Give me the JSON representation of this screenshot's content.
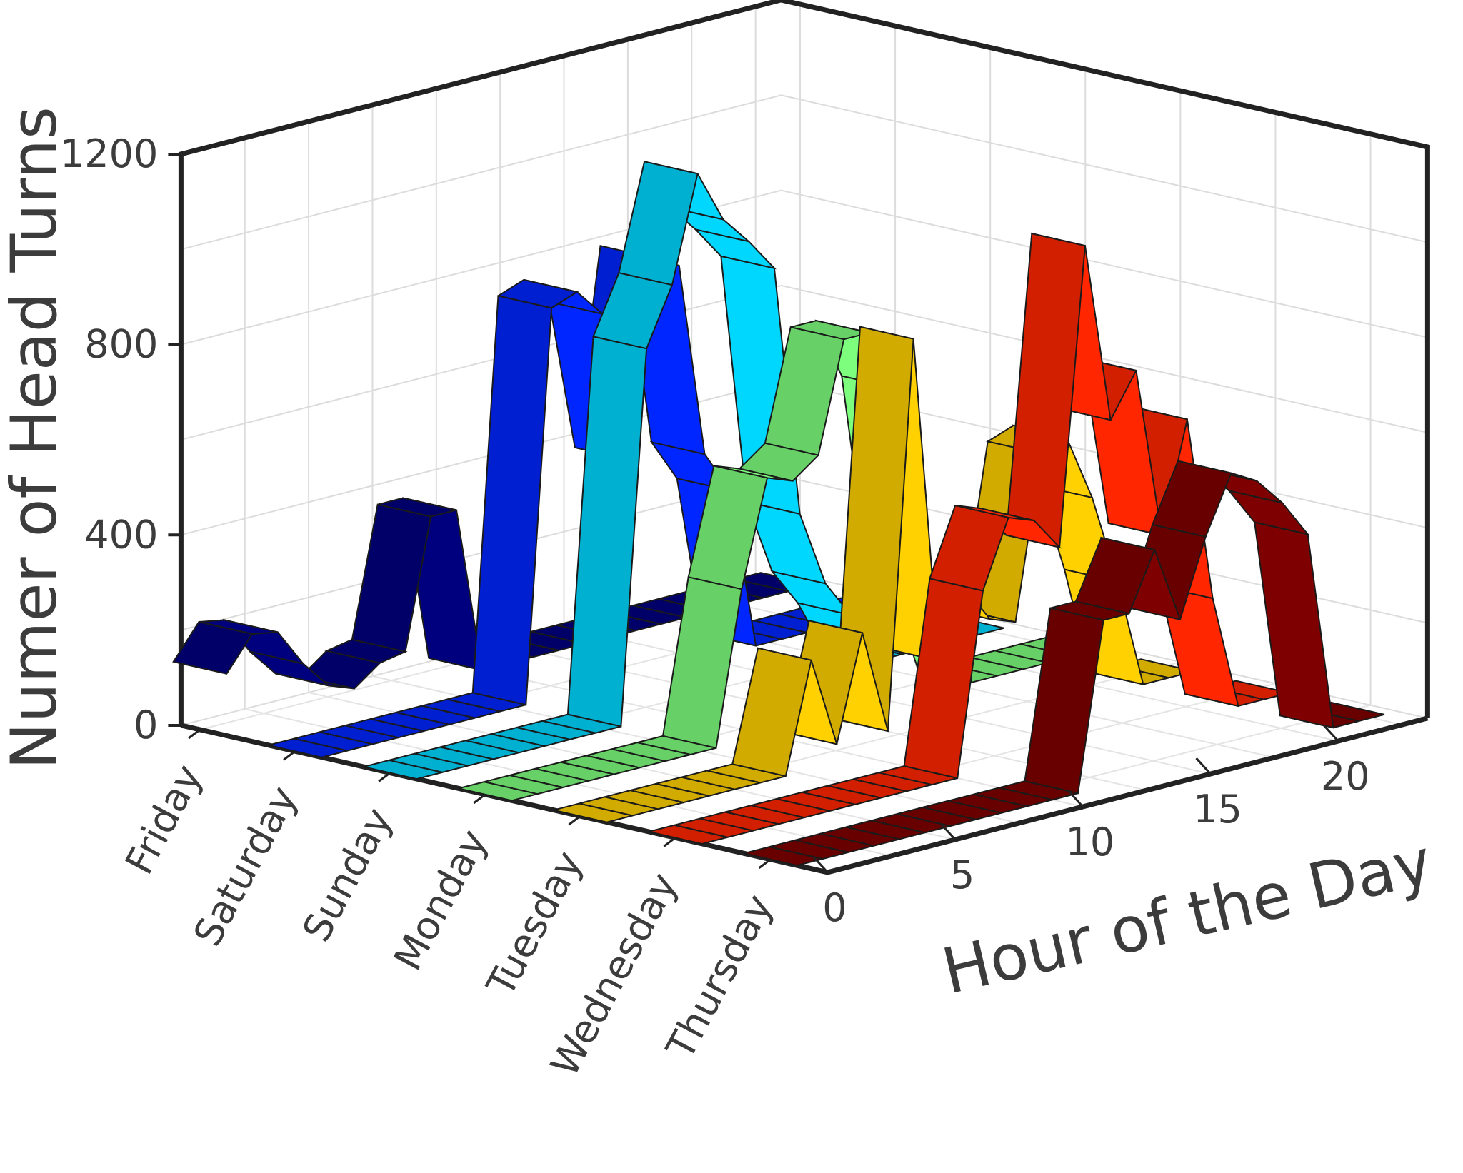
{
  "chart_data": {
    "type": "ribbon3d",
    "title": "",
    "zlabel": "Numer of Head Turns",
    "xlabel": "Hour of the Day",
    "ylabel": "",
    "zlim": [
      0,
      1200
    ],
    "z_ticks": [
      "0",
      "400",
      "800",
      "1200"
    ],
    "x_ticks": [
      "0",
      "5",
      "10",
      "15",
      "20"
    ],
    "xlim": [
      0,
      23
    ],
    "grid": true,
    "hours": [
      0,
      1,
      2,
      3,
      4,
      5,
      6,
      7,
      8,
      9,
      10,
      11,
      12,
      13,
      14,
      15,
      16,
      17,
      18,
      19,
      20,
      21,
      22,
      23
    ],
    "series": [
      {
        "name": "Friday",
        "color": "#00007f",
        "values": [
          130,
          200,
          190,
          110,
          50,
          30,
          70,
          80,
          350,
          350,
          0,
          0,
          0,
          0,
          0,
          0,
          0,
          0,
          0,
          0,
          0,
          0,
          0,
          0
        ]
      },
      {
        "name": "Saturday",
        "color": "#0026ff",
        "values": [
          0,
          0,
          0,
          0,
          0,
          0,
          0,
          0,
          0,
          820,
          840,
          780,
          460,
          870,
          840,
          430,
          340,
          0,
          0,
          0,
          0,
          0,
          0,
          0
        ]
      },
      {
        "name": "Sunday",
        "color": "#00d7ff",
        "values": [
          0,
          0,
          0,
          0,
          0,
          0,
          0,
          0,
          0,
          780,
          900,
          1120,
          1010,
          950,
          880,
          350,
          190,
          110,
          0,
          0,
          0,
          0,
          0,
          0
        ]
      },
      {
        "name": "Monday",
        "color": "#7dff7d",
        "values": [
          0,
          0,
          0,
          0,
          0,
          0,
          0,
          0,
          0,
          320,
          540,
          520,
          560,
          790,
          790,
          660,
          250,
          180,
          0,
          0,
          0,
          0,
          0,
          0
        ]
      },
      {
        "name": "Tuesday",
        "color": "#ffd100",
        "values": [
          0,
          0,
          0,
          0,
          0,
          0,
          0,
          0,
          230,
          40,
          260,
          40,
          850,
          160,
          300,
          220,
          200,
          540,
          560,
          420,
          230,
          0,
          0,
          0
        ]
      },
      {
        "name": "Wednesday",
        "color": "#ff2600",
        "values": [
          0,
          0,
          0,
          0,
          0,
          0,
          0,
          0,
          0,
          0,
          0,
          380,
          520,
          500,
          430,
          1050,
          670,
          760,
          400,
          630,
          240,
          0,
          0,
          0
        ]
      },
      {
        "name": "Thursday",
        "color": "#7f0000",
        "values": [
          0,
          0,
          0,
          0,
          0,
          0,
          0,
          0,
          0,
          0,
          0,
          0,
          350,
          350,
          470,
          310,
          470,
          590,
          560,
          500,
          420,
          0,
          0,
          0
        ]
      }
    ]
  }
}
